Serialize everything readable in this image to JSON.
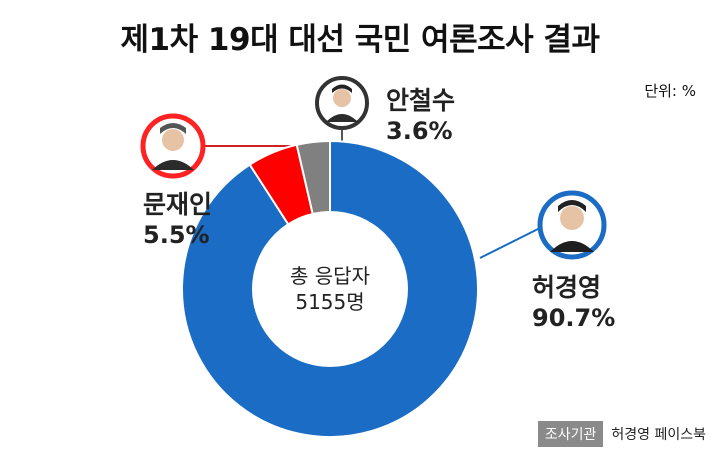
{
  "title": "제1차 19대 대선 국민 여론조사 결과",
  "unit": "단위: %",
  "center": {
    "line1": "총 응답자",
    "line2": "5155명"
  },
  "source": {
    "tag": "조사기관",
    "name": "허경영 페이스북"
  },
  "candidates": [
    {
      "name": "허경영",
      "value_text": "90.7%",
      "photo": "person-portrait-icon"
    },
    {
      "name": "문재인",
      "value_text": "5.5%",
      "photo": "person-portrait-icon"
    },
    {
      "name": "안철수",
      "value_text": "3.6%",
      "photo": "person-portrait-icon"
    }
  ],
  "chart_data": {
    "type": "pie",
    "style": "donut",
    "categories": [
      "허경영",
      "문재인",
      "안철수"
    ],
    "values": [
      90.7,
      5.5,
      3.6
    ],
    "colors": [
      "#1a6cc4",
      "#ff0000",
      "#808080"
    ],
    "title": "제1차 19대 대선 국민 여론조사 결과",
    "unit": "%",
    "legend": "none"
  }
}
